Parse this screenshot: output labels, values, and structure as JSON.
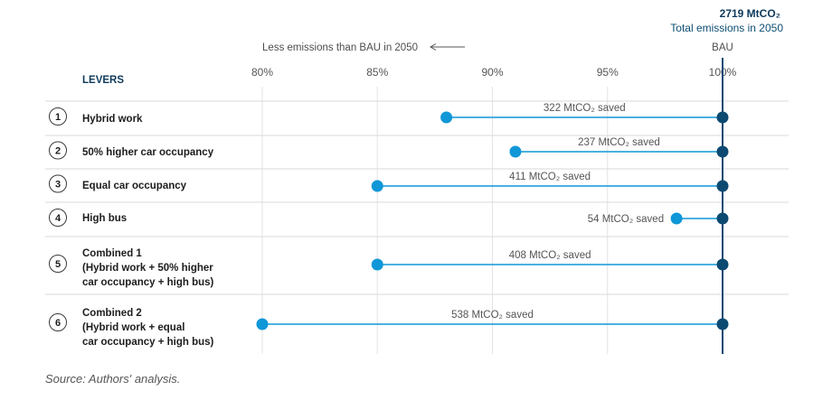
{
  "chart_data": {
    "type": "dumbbell",
    "total": {
      "value": "2719 MtCO₂",
      "label": "Total emissions in 2050"
    },
    "direction_note": "Less emissions than BAU in 2050",
    "bau_label": "BAU",
    "levers_header": "LEVERS",
    "x_ticks": [
      "80%",
      "85%",
      "90%",
      "95%",
      "100%"
    ],
    "xlim": [
      80,
      100
    ],
    "baseline": 100,
    "rows": [
      {
        "num": "1",
        "lines": [
          "Hybrid work"
        ],
        "value": 88,
        "saved": "322 MtCO₂ saved"
      },
      {
        "num": "2",
        "lines": [
          "50% higher car occupancy"
        ],
        "value": 91,
        "saved": "237 MtCO₂ saved"
      },
      {
        "num": "3",
        "lines": [
          "Equal car occupancy"
        ],
        "value": 85,
        "saved": "411 MtCO₂ saved"
      },
      {
        "num": "4",
        "lines": [
          "High bus"
        ],
        "value": 98,
        "saved": "54 MtCO₂ saved"
      },
      {
        "num": "5",
        "lines": [
          "Combined 1",
          "(Hybrid work + 50% higher",
          "car occupancy + high bus)"
        ],
        "value": 85,
        "saved": "408 MtCO₂ saved"
      },
      {
        "num": "6",
        "lines": [
          "Combined 2",
          "(Hybrid work + equal",
          "car occupancy + high bus)"
        ],
        "value": 80,
        "saved": "538 MtCO₂ saved"
      }
    ],
    "colors": {
      "lever_point": "#0f97d7",
      "bau_point": "#0d4a72",
      "line": "#0f97d7",
      "bau_line": "#0d4a72"
    }
  },
  "source": "Source: Authors' analysis."
}
